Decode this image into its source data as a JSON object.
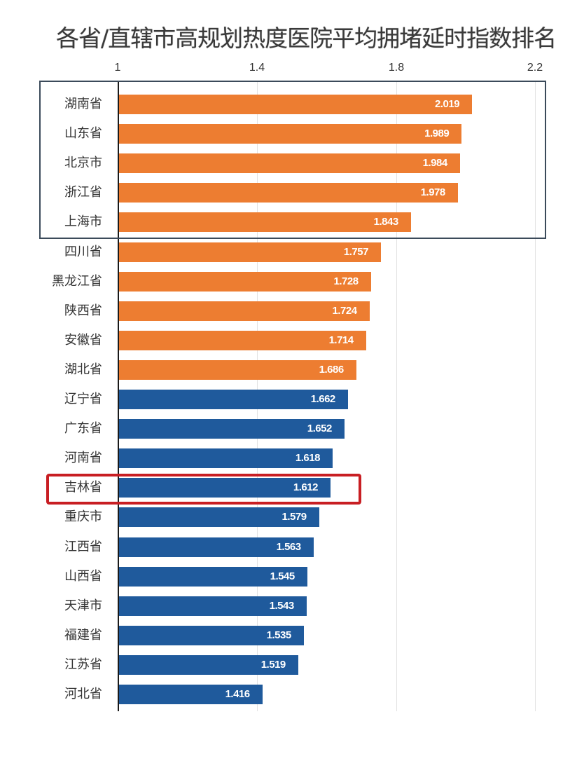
{
  "chart_data": {
    "type": "bar",
    "orientation": "horizontal",
    "title": "各省/直辖市高规划热度医院平均拥堵延时指数排名",
    "xlabel": "",
    "ylabel": "",
    "xlim": [
      1,
      2.2
    ],
    "x_ticks": [
      "1",
      "1.4",
      "1.8",
      "2.2"
    ],
    "grid": true,
    "categories": [
      "湖南省",
      "山东省",
      "北京市",
      "浙江省",
      "上海市",
      "四川省",
      "黑龙江省",
      "陕西省",
      "安徽省",
      "湖北省",
      "辽宁省",
      "广东省",
      "河南省",
      "吉林省",
      "重庆市",
      "江西省",
      "山西省",
      "天津市",
      "福建省",
      "江苏省",
      "河北省"
    ],
    "values": [
      2.019,
      1.989,
      1.984,
      1.978,
      1.843,
      1.757,
      1.728,
      1.724,
      1.714,
      1.686,
      1.662,
      1.652,
      1.618,
      1.612,
      1.579,
      1.563,
      1.545,
      1.543,
      1.535,
      1.519,
      1.416
    ],
    "value_labels": [
      "2.019",
      "1.989",
      "1.984",
      "1.978",
      "1.843",
      "1.757",
      "1.728",
      "1.724",
      "1.714",
      "1.686",
      "1.662",
      "1.652",
      "1.618",
      "1.612",
      "1.579",
      "1.563",
      "1.545",
      "1.543",
      "1.535",
      "1.519",
      "1.416"
    ],
    "bar_colors": {
      "top10": "#ed7d31",
      "others": "#1f5a9c"
    },
    "annotations": [
      {
        "type": "box",
        "target": "top5",
        "color": "#3b4a5a"
      },
      {
        "type": "box",
        "target": "吉林省",
        "color": "#c81e23"
      }
    ]
  }
}
